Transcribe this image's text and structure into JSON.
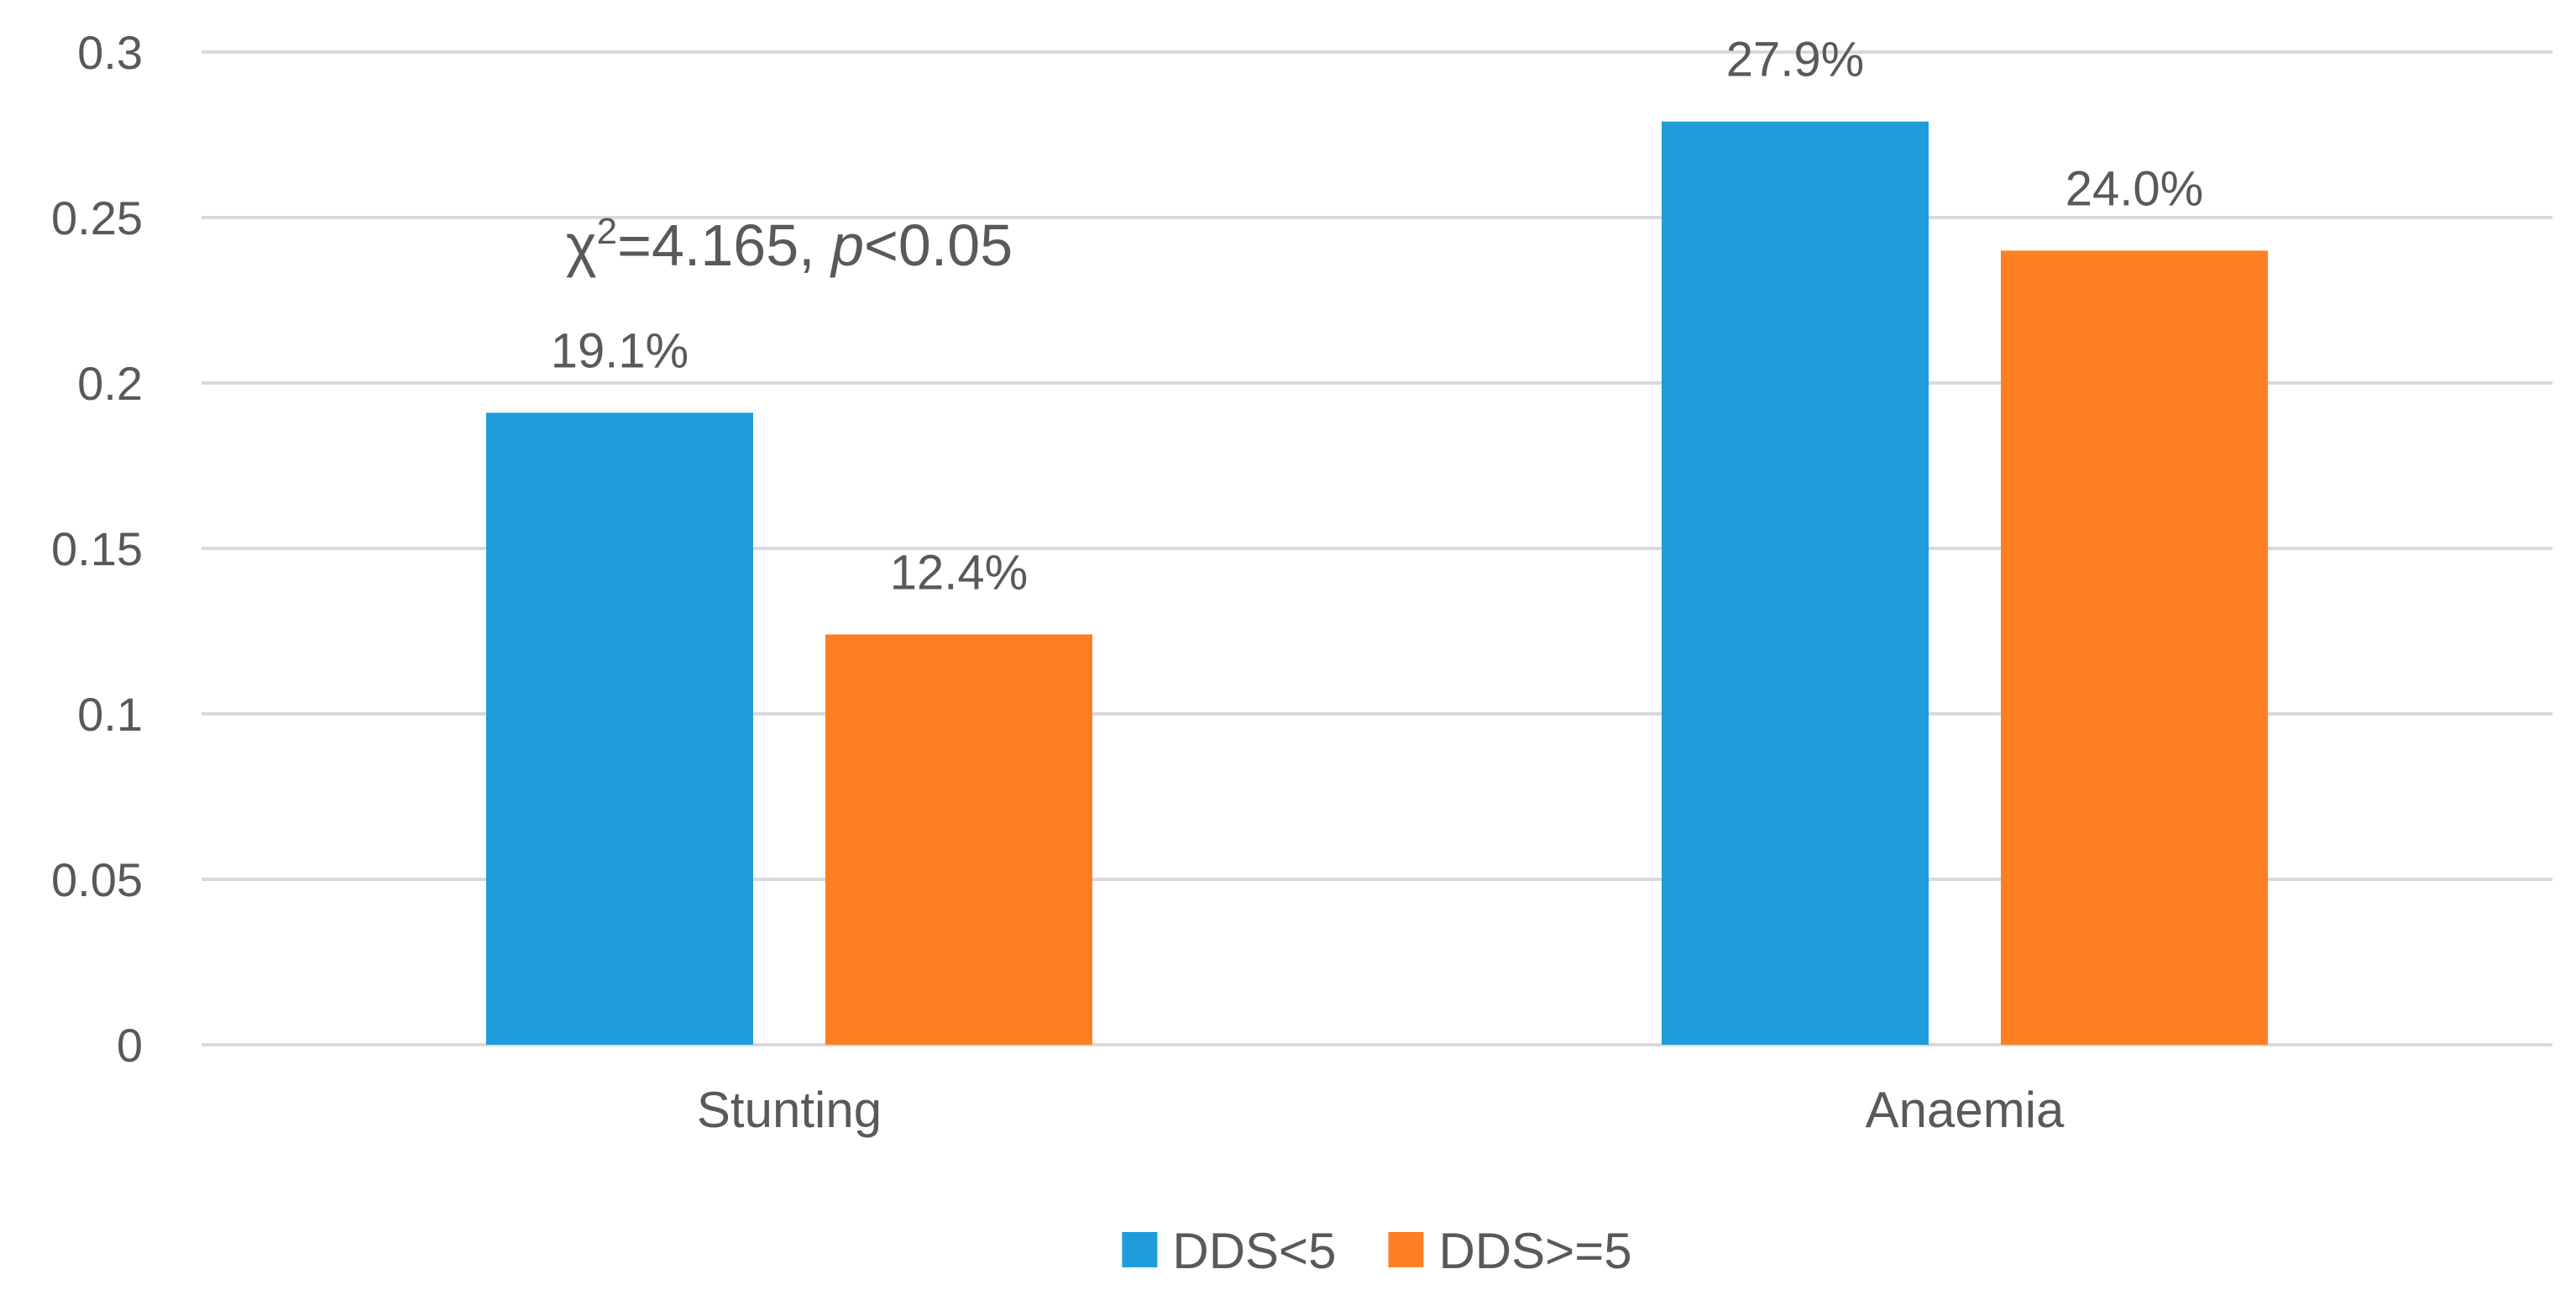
{
  "chart_data": {
    "type": "bar",
    "categories": [
      "Stunting",
      "Anaemia"
    ],
    "series": [
      {
        "name": "DDS<5",
        "color": "#1F9CD9",
        "values": [
          0.191,
          0.279
        ],
        "labels": [
          "19.1%",
          "27.9%"
        ]
      },
      {
        "name": "DDS>=5",
        "color": "#FD7F23",
        "values": [
          0.124,
          0.24
        ],
        "labels": [
          "12.4%",
          "24.0%"
        ]
      }
    ],
    "ylim": [
      0,
      0.3
    ],
    "yticks": [
      0,
      0.05,
      0.1,
      0.15,
      0.2,
      0.25,
      0.3
    ],
    "ytick_labels": [
      "0",
      "0.05",
      "0.1",
      "0.15",
      "0.2",
      "0.25",
      "0.3"
    ],
    "grid": true,
    "legend_position": "bottom-center",
    "annotations": [
      {
        "category": "Stunting",
        "symbol": "χ",
        "superscript": "2",
        "text_before_italic": "=4.165, ",
        "italic": "p",
        "text_after_italic": "<0.05"
      }
    ],
    "title": "",
    "xlabel": "",
    "ylabel": ""
  }
}
